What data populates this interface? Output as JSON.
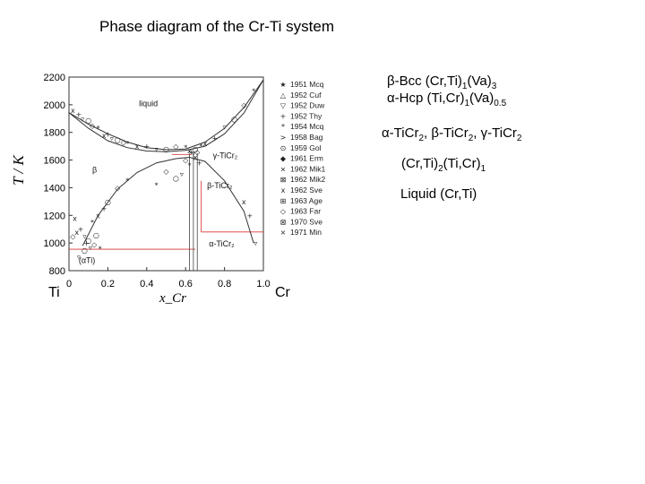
{
  "title": "Phase diagram of the Cr-Ti system",
  "phases": {
    "bcc_line": [
      "β-Bcc (Cr,Ti)",
      "1",
      "(Va)",
      "3"
    ],
    "hcp_line": [
      "α-Hcp (Ti,Cr)",
      "1",
      "(Va)",
      "0.5"
    ],
    "laves_line": [
      "α-TiCr",
      "2",
      ", β-TiCr",
      "2",
      ", γ-TiCr",
      "2"
    ],
    "ordered_line": [
      "(Cr,Ti)",
      "2",
      "(Ti,Cr)",
      "1"
    ],
    "liquid_line": "Liquid (Cr,Ti)"
  },
  "chart_data": {
    "type": "scatter",
    "title": "",
    "xlabel": "x_Cr",
    "ylabel": "T / K",
    "xlim": [
      0,
      1.0
    ],
    "ylim": [
      800,
      2200
    ],
    "x_ticks": [
      "0",
      "0.2",
      "0.4",
      "0.6",
      "0.8",
      "1.0"
    ],
    "y_ticks": [
      "800",
      "1000",
      "1200",
      "1400",
      "1600",
      "1800",
      "2000",
      "2200"
    ],
    "end_labels": {
      "left": "Ti",
      "right": "Cr"
    },
    "region_labels": [
      {
        "text": "liquid",
        "x": 0.36,
        "y": 1990
      },
      {
        "text": "β",
        "x": 0.12,
        "y": 1510
      },
      {
        "text": "γ-TiCr₂",
        "x": 0.74,
        "y": 1615
      },
      {
        "text": "β-TiCr₂",
        "x": 0.71,
        "y": 1395
      },
      {
        "text": "α-TiCr₂",
        "x": 0.72,
        "y": 975
      },
      {
        "text": "(αTi)",
        "x": 0.05,
        "y": 855
      }
    ],
    "legend": [
      "1951 Mcq",
      "1952 Cuf",
      "1952 Duw",
      "1952 Thy",
      "1954 Mcq",
      "1958 Bag",
      "1959 Gol",
      "1961 Erm",
      "1962 Mik1",
      "1962 Mik2",
      "1962 Sve",
      "1963 Age",
      "1963 Far",
      "1970 Sve",
      "1971 Min"
    ],
    "series": [
      {
        "name": "liquidus",
        "x": [
          0.0,
          0.1,
          0.2,
          0.3,
          0.4,
          0.5,
          0.6,
          0.7,
          0.8,
          0.9,
          1.0
        ],
        "y": [
          1943,
          1860,
          1790,
          1730,
          1690,
          1675,
          1680,
          1730,
          1830,
          1980,
          2180
        ]
      },
      {
        "name": "solidus",
        "x": [
          0.0,
          0.1,
          0.2,
          0.3,
          0.4,
          0.5,
          0.6,
          0.7,
          0.8,
          0.9,
          1.0
        ],
        "y": [
          1943,
          1830,
          1740,
          1690,
          1665,
          1660,
          1670,
          1700,
          1790,
          1940,
          2180
        ]
      },
      {
        "name": "bcc-miscibility",
        "x": [
          0.07,
          0.15,
          0.25,
          0.35,
          0.45,
          0.55,
          0.62,
          0.7,
          0.8,
          0.9,
          0.95
        ],
        "y": [
          980,
          1200,
          1390,
          1510,
          1580,
          1610,
          1620,
          1590,
          1450,
          1230,
          1000
        ]
      }
    ],
    "points": {
      "x": [
        0.02,
        0.05,
        0.07,
        0.1,
        0.12,
        0.15,
        0.18,
        0.2,
        0.22,
        0.25,
        0.28,
        0.3,
        0.35,
        0.4,
        0.45,
        0.5,
        0.55,
        0.6,
        0.62,
        0.63,
        0.64,
        0.65,
        0.66,
        0.68,
        0.7,
        0.75,
        0.8,
        0.85,
        0.9,
        0.95,
        0.03,
        0.06,
        0.08,
        0.1,
        0.13,
        0.16,
        0.04,
        0.09,
        0.11,
        0.14,
        0.6,
        0.62,
        0.65,
        0.67,
        0.58,
        0.55,
        0.5,
        0.45,
        0.9,
        0.93,
        0.96,
        0.2,
        0.25,
        0.3,
        0.15,
        0.18,
        0.05,
        0.08,
        0.02,
        0.12
      ],
      "y": [
        1960,
        1930,
        1900,
        1890,
        1850,
        1830,
        1780,
        1790,
        1760,
        1750,
        1730,
        1720,
        1700,
        1700,
        1680,
        1680,
        1700,
        1690,
        1670,
        1660,
        1650,
        1680,
        1660,
        1700,
        1720,
        1760,
        1840,
        1900,
        2000,
        2100,
        1180,
        1100,
        1050,
        1020,
        990,
        960,
        1080,
        1000,
        970,
        1060,
        1600,
        1560,
        1620,
        1580,
        1500,
        1470,
        1520,
        1420,
        1300,
        1200,
        1000,
        1300,
        1400,
        1450,
        1200,
        1250,
        900,
        950,
        1050,
        1150
      ]
    }
  }
}
